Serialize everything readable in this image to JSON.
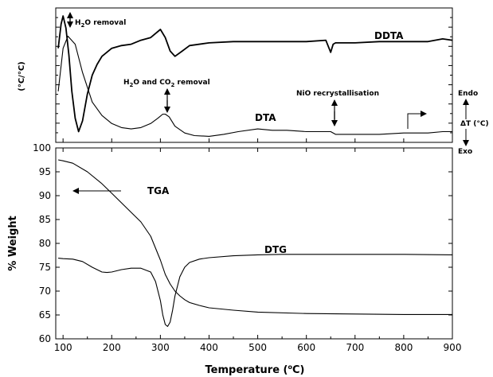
{
  "chart_data": [
    {
      "type": "line",
      "panel": "top",
      "ylabel": "(°C/°C)",
      "right_label": {
        "top": "Endo",
        "middle": "ΔT (°C)",
        "bottom": "Exo"
      },
      "series": [
        {
          "name": "DDTA",
          "x": [
            90,
            96,
            100,
            106,
            112,
            118,
            125,
            132,
            140,
            150,
            160,
            170,
            180,
            200,
            220,
            240,
            260,
            280,
            300,
            310,
            320,
            330,
            345,
            360,
            400,
            450,
            500,
            550,
            600,
            640,
            650,
            655,
            660,
            700,
            750,
            800,
            850,
            880,
            900
          ],
          "y": [
            0.3,
            0.12,
            0.06,
            0.15,
            0.35,
            0.62,
            0.82,
            0.92,
            0.84,
            0.64,
            0.5,
            0.42,
            0.36,
            0.3,
            0.28,
            0.27,
            0.24,
            0.22,
            0.16,
            0.22,
            0.32,
            0.36,
            0.32,
            0.28,
            0.26,
            0.25,
            0.25,
            0.25,
            0.25,
            0.24,
            0.33,
            0.27,
            0.26,
            0.26,
            0.25,
            0.25,
            0.25,
            0.23,
            0.24
          ]
        },
        {
          "name": "DTA",
          "x": [
            90,
            100,
            110,
            125,
            140,
            160,
            180,
            200,
            220,
            240,
            260,
            280,
            295,
            305,
            310,
            318,
            330,
            350,
            370,
            400,
            430,
            460,
            500,
            530,
            560,
            600,
            630,
            650,
            660,
            680,
            700,
            750,
            800,
            850,
            880,
            900
          ],
          "y": [
            0.62,
            0.3,
            0.21,
            0.27,
            0.48,
            0.7,
            0.8,
            0.86,
            0.89,
            0.9,
            0.89,
            0.86,
            0.82,
            0.79,
            0.79,
            0.81,
            0.88,
            0.93,
            0.95,
            0.955,
            0.94,
            0.92,
            0.9,
            0.91,
            0.91,
            0.92,
            0.92,
            0.92,
            0.94,
            0.94,
            0.94,
            0.94,
            0.93,
            0.93,
            0.92,
            0.92
          ]
        }
      ],
      "annotations": [
        {
          "text_parts": [
            "H",
            "2",
            "O removal"
          ],
          "x": 105
        },
        {
          "text_parts": [
            "H",
            "2",
            "O and CO",
            "2",
            " removal"
          ],
          "x": 310
        },
        {
          "text": "NiO recrystallisation",
          "x": 655
        }
      ]
    },
    {
      "type": "line",
      "panel": "bottom",
      "xlabel_parts": [
        "Temperature (",
        "o",
        "C)"
      ],
      "ylabel": "% Weight",
      "xlim": [
        85,
        900
      ],
      "ylim": [
        60,
        100
      ],
      "xticks": [
        "100",
        "200",
        "300",
        "400",
        "500",
        "600",
        "700",
        "800",
        "900"
      ],
      "yticks": [
        "60",
        "65",
        "70",
        "75",
        "80",
        "85",
        "90",
        "95",
        "100"
      ],
      "series": [
        {
          "name": "TGA",
          "x": [
            90,
            100,
            120,
            150,
            180,
            200,
            220,
            240,
            260,
            280,
            290,
            300,
            310,
            320,
            330,
            340,
            350,
            360,
            380,
            400,
            450,
            500,
            600,
            700,
            800,
            900
          ],
          "y": [
            97.5,
            97.3,
            96.8,
            95.0,
            92.5,
            90.5,
            88.5,
            86.5,
            84.5,
            81.5,
            79.0,
            76.5,
            73.5,
            71.5,
            70.0,
            69.0,
            68.2,
            67.6,
            67.0,
            66.5,
            66.0,
            65.6,
            65.3,
            65.2,
            65.1,
            65.1
          ]
        },
        {
          "name": "DTG",
          "x": [
            90,
            100,
            120,
            140,
            160,
            180,
            190,
            200,
            220,
            240,
            260,
            280,
            290,
            300,
            305,
            310,
            315,
            320,
            325,
            330,
            340,
            350,
            360,
            380,
            400,
            450,
            500,
            550,
            600,
            700,
            800,
            900
          ],
          "y": [
            76.9,
            76.8,
            76.7,
            76.2,
            75.0,
            74.0,
            73.9,
            74.0,
            74.5,
            74.8,
            74.8,
            74.0,
            72.0,
            68.0,
            65.0,
            63.0,
            62.6,
            63.5,
            66.0,
            69.0,
            73.0,
            75.0,
            76.0,
            76.7,
            77.0,
            77.4,
            77.6,
            77.7,
            77.7,
            77.7,
            77.7,
            77.6
          ]
        }
      ]
    }
  ]
}
